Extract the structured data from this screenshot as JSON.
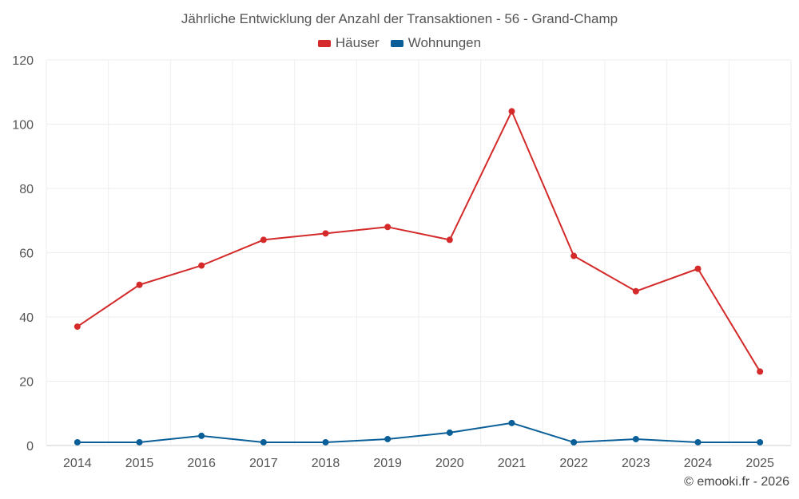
{
  "chart_data": {
    "type": "line",
    "title": "Jährliche Entwicklung der Anzahl der Transaktionen - 56 - Grand-Champ",
    "xlabel": "",
    "ylabel": "",
    "categories": [
      "2014",
      "2015",
      "2016",
      "2017",
      "2018",
      "2019",
      "2020",
      "2021",
      "2022",
      "2023",
      "2024",
      "2025"
    ],
    "series": [
      {
        "name": "Häuser",
        "color": "#d42a2a",
        "values": [
          37,
          50,
          56,
          64,
          66,
          68,
          64,
          104,
          59,
          48,
          55,
          23
        ]
      },
      {
        "name": "Wohnungen",
        "color": "#0a5f99",
        "values": [
          1,
          1,
          3,
          1,
          1,
          2,
          4,
          7,
          1,
          2,
          1,
          1
        ]
      }
    ],
    "ylim": [
      0,
      120
    ],
    "yticks": [
      0,
      20,
      40,
      60,
      80,
      100,
      120
    ],
    "grid": true,
    "legend_position": "top-center"
  },
  "credit": "© emooki.fr - 2026"
}
